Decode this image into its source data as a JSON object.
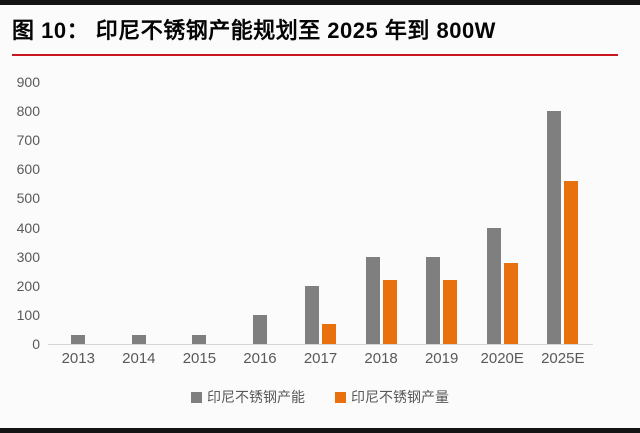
{
  "header": {
    "title": "图 10： 印尼不锈钢产能规划至 2025 年到 800W",
    "rule_color": "#C9151E"
  },
  "chart_data": {
    "type": "bar",
    "title": "图 10： 印尼不锈钢产能规划至 2025 年到 800W",
    "categories": [
      "2013",
      "2014",
      "2015",
      "2016",
      "2017",
      "2018",
      "2019",
      "2020E",
      "2025E"
    ],
    "series": [
      {
        "name": "印尼不锈钢产能",
        "color": "#7F7F7F",
        "values": [
          30,
          30,
          30,
          100,
          200,
          300,
          300,
          400,
          800
        ]
      },
      {
        "name": "印尼不锈钢产量",
        "color": "#E8710D",
        "values": [
          0,
          0,
          0,
          0,
          70,
          220,
          220,
          280,
          560
        ]
      }
    ],
    "xlabel": "",
    "ylabel": "",
    "ylim": [
      0,
      900
    ],
    "ytick_step": 100,
    "grid": false,
    "legend_position": "bottom"
  },
  "colors": {
    "top_bottom_bar": "#141414",
    "axis_text": "#595959",
    "baseline": "#D6D6D6"
  }
}
